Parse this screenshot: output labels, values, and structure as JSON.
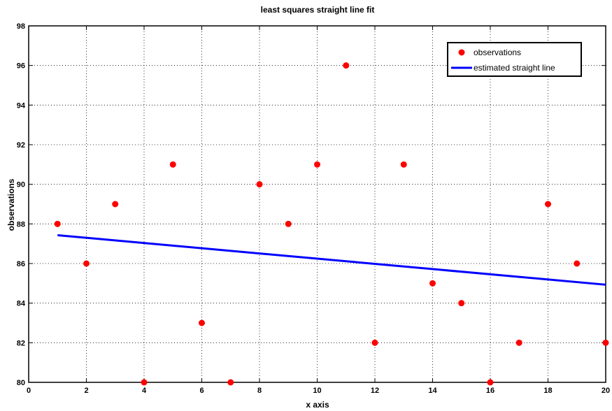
{
  "chart_data": {
    "type": "scatter",
    "title": "least squares straight line fit",
    "xlabel": "x axis",
    "ylabel": "observations",
    "xlim": [
      0,
      20
    ],
    "ylim": [
      80,
      98
    ],
    "xticks": [
      0,
      2,
      4,
      6,
      8,
      10,
      12,
      14,
      16,
      18,
      20
    ],
    "yticks": [
      80,
      82,
      84,
      86,
      88,
      90,
      92,
      94,
      96,
      98
    ],
    "grid": true,
    "legend_position": "top-right",
    "series": [
      {
        "name": "observations",
        "kind": "scatter",
        "color": "#ff0000",
        "x": [
          1,
          2,
          3,
          4,
          5,
          6,
          7,
          8,
          9,
          10,
          11,
          12,
          13,
          14,
          15,
          16,
          17,
          18,
          19,
          20
        ],
        "y": [
          88,
          86,
          89,
          80,
          91,
          83,
          80,
          90,
          88,
          91,
          96,
          82,
          91,
          85,
          84,
          80,
          82,
          89,
          86,
          82
        ]
      },
      {
        "name": "estimated straight line",
        "kind": "line",
        "color": "#0000ff",
        "x": [
          1,
          20
        ],
        "y": [
          87.43,
          84.93
        ]
      }
    ]
  }
}
